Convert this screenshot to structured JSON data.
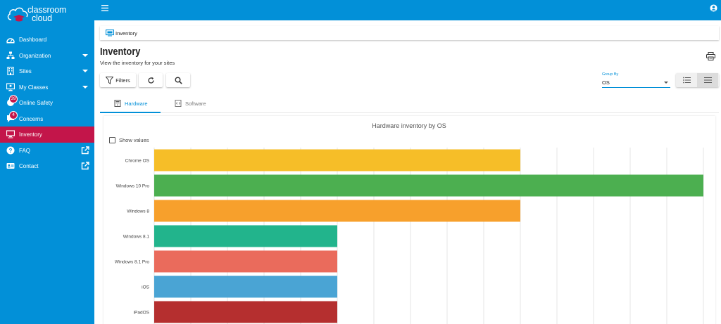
{
  "app": {
    "logo_line1": "classroom",
    "logo_line2": "cloud"
  },
  "sidebar": {
    "items": [
      {
        "label": "Dashboard",
        "icon": "dashboard-icon"
      },
      {
        "label": "Organization",
        "icon": "organization-icon",
        "caret": true
      },
      {
        "label": "Sites",
        "icon": "sites-icon",
        "caret": true
      },
      {
        "label": "My Classes",
        "icon": "classes-icon",
        "caret": true
      },
      {
        "label": "Online Safety",
        "icon": "online-safety-icon",
        "badge": "39"
      },
      {
        "label": "Concerns",
        "icon": "concerns-icon",
        "badge": "4"
      },
      {
        "label": "Inventory",
        "icon": "inventory-icon",
        "active": true
      },
      {
        "label": "FAQ",
        "icon": "faq-icon",
        "external": true
      },
      {
        "label": "Contact",
        "icon": "contact-icon",
        "external": true
      }
    ]
  },
  "breadcrumb": {
    "label": "Inventory"
  },
  "page": {
    "title": "Inventory",
    "subtitle": "View the inventory for your sites"
  },
  "toolbar": {
    "filters_label": "Filters"
  },
  "group_by": {
    "label": "Group By",
    "value": "OS"
  },
  "tabs": [
    {
      "label": "Hardware",
      "active": true
    },
    {
      "label": "Software",
      "active": false
    }
  ],
  "show_values_label": "Show values",
  "colors": {
    "primary": "#0290d8",
    "active_nav": "#c3154a"
  },
  "chart_data": {
    "type": "bar",
    "orientation": "horizontal",
    "title": "Hardware inventory by OS",
    "categories": [
      "Chrome OS",
      "Windows 10 Pro",
      "Windows 8",
      "Windows 8.1",
      "Windows 8.1 Pro",
      "iOS",
      "iPadOS"
    ],
    "values": [
      10,
      15,
      10,
      5,
      5,
      5,
      5
    ],
    "colors": [
      "#f6be28",
      "#4caf50",
      "#f7a02c",
      "#22b48c",
      "#ea6b5c",
      "#4aa4d4",
      "#b52f2f"
    ],
    "xlim": [
      0,
      15
    ],
    "grid": true
  }
}
